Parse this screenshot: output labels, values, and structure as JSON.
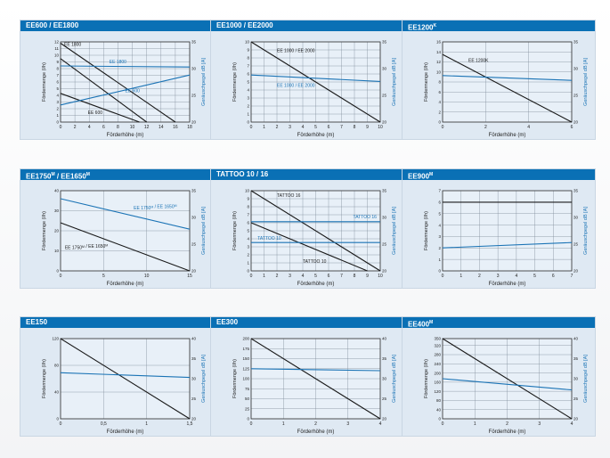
{
  "common": {
    "xlabel": "Förderhöhe (m)",
    "ylabel_left": "Fördermenge (l/h)",
    "ylabel_right": "Geräuschpegel dB [A]"
  },
  "colors": {
    "header": "#0a70b5",
    "flow": "#1a1a1a",
    "noise": "#1a73b5",
    "grid": "#7f8c99"
  },
  "chart_data": [
    {
      "type": "line",
      "title": "EE600 / EE1800",
      "x_ticks": [
        0,
        2,
        4,
        6,
        8,
        10,
        12,
        14,
        16,
        18
      ],
      "xlim": [
        0,
        18
      ],
      "y_ticks": [
        0,
        1,
        2,
        3,
        4,
        5,
        6,
        7,
        8,
        9,
        10,
        11,
        12
      ],
      "ylim": [
        0,
        12
      ],
      "y2_ticks": [
        20,
        25,
        30,
        35
      ],
      "y2lim": [
        20,
        35
      ],
      "series": [
        {
          "name": "EE 1800",
          "axis": "left",
          "x": [
            0,
            16
          ],
          "y": [
            11.8,
            0
          ]
        },
        {
          "name": "",
          "axis": "left",
          "x": [
            0,
            12
          ],
          "y": [
            9.5,
            0
          ]
        },
        {
          "name": "EE 600",
          "axis": "left",
          "x": [
            0,
            11
          ],
          "y": [
            4.3,
            0
          ]
        },
        {
          "name": "EE 1800",
          "axis": "right",
          "x": [
            0,
            18
          ],
          "y": [
            30.5,
            30.3
          ]
        },
        {
          "name": "EE 600",
          "axis": "right",
          "x": [
            0,
            18
          ],
          "y": [
            23.2,
            28.8
          ]
        }
      ],
      "labels": [
        {
          "text": "EE 1800",
          "x": 0.5,
          "y": 11.4,
          "axis": "left",
          "color": "flow"
        },
        {
          "text": "EE 1800",
          "x": 6.8,
          "y": 31.0,
          "axis": "right",
          "color": "noise"
        },
        {
          "text": "EE 600",
          "x": 9.0,
          "y": 25.6,
          "axis": "right",
          "color": "noise"
        },
        {
          "text": "EE 600",
          "x": 3.8,
          "y": 1.2,
          "axis": "left",
          "color": "flow"
        }
      ]
    },
    {
      "type": "line",
      "title": "EE1000 / EE2000",
      "x_ticks": [
        0,
        1,
        2,
        3,
        4,
        5,
        6,
        7,
        8,
        9,
        10
      ],
      "xlim": [
        0,
        10
      ],
      "y_ticks": [
        0,
        1,
        2,
        3,
        4,
        5,
        6,
        7,
        8,
        9,
        10
      ],
      "ylim": [
        0,
        10
      ],
      "y2_ticks": [
        20,
        25,
        30,
        35
      ],
      "y2lim": [
        20,
        35
      ],
      "series": [
        {
          "name": "EE 1000 / EE 2000",
          "axis": "left",
          "x": [
            0,
            10
          ],
          "y": [
            10,
            0
          ]
        },
        {
          "name": "EE 1000 / EE 2000",
          "axis": "right",
          "x": [
            0,
            10
          ],
          "y": [
            28.8,
            27.6
          ]
        }
      ],
      "labels": [
        {
          "text": "EE 1000 / EE 2000",
          "x": 2.0,
          "y": 8.7,
          "axis": "left",
          "color": "flow"
        },
        {
          "text": "EE 1000 / EE 2000",
          "x": 2.0,
          "y": 26.6,
          "axis": "right",
          "color": "noise"
        }
      ]
    },
    {
      "type": "line",
      "title": "EE1200",
      "title_sup": "K",
      "x_ticks": [
        0,
        2,
        4,
        6
      ],
      "xlim": [
        0,
        6
      ],
      "y_ticks": [
        0,
        2,
        4,
        6,
        8,
        10,
        12,
        14,
        16
      ],
      "ylim": [
        0,
        16
      ],
      "y2_ticks": [
        20,
        25,
        30,
        35
      ],
      "y2lim": [
        20,
        35
      ],
      "series": [
        {
          "name": "EE 1200K",
          "axis": "left",
          "x": [
            0,
            6
          ],
          "y": [
            13.5,
            0
          ]
        },
        {
          "name": "EE 1200K",
          "axis": "right",
          "x": [
            0,
            6
          ],
          "y": [
            28.7,
            27.8
          ]
        }
      ],
      "labels": [
        {
          "text": "EE 1200K",
          "x": 1.2,
          "y": 12.0,
          "axis": "left",
          "color": "flow"
        }
      ]
    },
    {
      "type": "line",
      "title": "EE1750",
      "title_sup": "M",
      "title_rest": " / EE1650",
      "title_sup2": "M",
      "x_ticks": [
        0,
        5,
        10,
        15
      ],
      "xlim": [
        0,
        15
      ],
      "y_ticks": [
        0,
        10,
        20,
        30,
        40
      ],
      "ylim": [
        0,
        40
      ],
      "y2_ticks": [
        20,
        25,
        30,
        35
      ],
      "y2lim": [
        20,
        35
      ],
      "series": [
        {
          "name": "EE 1750M / EE 1650M",
          "axis": "left",
          "x": [
            0,
            15
          ],
          "y": [
            24,
            0
          ]
        },
        {
          "name": "EE 1750M / EE 1650M",
          "axis": "right",
          "x": [
            0,
            15
          ],
          "y": [
            33.5,
            27.8
          ]
        }
      ],
      "labels": [
        {
          "text": "EE 1750",
          "sup": "M",
          "rest": " / EE 1650",
          "sup2": "M",
          "x": 8.5,
          "y": 31.5,
          "axis": "right",
          "color": "noise"
        },
        {
          "text": "EE 1750",
          "sup": "M",
          "rest": " / EE 1650",
          "sup2": "M",
          "x": 0.5,
          "y": 11.0,
          "axis": "left",
          "color": "flow"
        }
      ]
    },
    {
      "type": "line",
      "title": "TATTOO 10 / 16",
      "x_ticks": [
        0,
        1,
        2,
        3,
        4,
        5,
        6,
        7,
        8,
        9,
        10
      ],
      "xlim": [
        0,
        10
      ],
      "y_ticks": [
        0,
        1,
        2,
        3,
        4,
        5,
        6,
        7,
        8,
        9,
        10
      ],
      "ylim": [
        0,
        10
      ],
      "y2_ticks": [
        20,
        25,
        30,
        35
      ],
      "y2lim": [
        20,
        35
      ],
      "series": [
        {
          "name": "TATTOO 16",
          "axis": "left",
          "x": [
            0,
            10
          ],
          "y": [
            10,
            0
          ]
        },
        {
          "name": "TATTOO 10",
          "axis": "left",
          "x": [
            0,
            9
          ],
          "y": [
            6,
            0
          ]
        },
        {
          "name": "TATTOO 16",
          "axis": "right",
          "x": [
            0,
            10
          ],
          "y": [
            29.2,
            29.2
          ]
        },
        {
          "name": "TATTOO 10",
          "axis": "right",
          "x": [
            0,
            10
          ],
          "y": [
            25.3,
            25.3
          ]
        }
      ],
      "labels": [
        {
          "text": "TATTOO 16",
          "x": 2.0,
          "y": 9.2,
          "axis": "left",
          "color": "flow"
        },
        {
          "text": "TATTOO 16",
          "x": 7.9,
          "y": 29.8,
          "axis": "right",
          "color": "noise"
        },
        {
          "text": "TATTOO 10",
          "x": 0.5,
          "y": 25.8,
          "axis": "right",
          "color": "noise"
        },
        {
          "text": "TATTOO 10",
          "x": 4.0,
          "y": 1.0,
          "axis": "left",
          "color": "flow"
        }
      ]
    },
    {
      "type": "line",
      "title": "EE900",
      "title_sup": "M",
      "x_ticks": [
        0,
        1,
        2,
        3,
        4,
        5,
        6,
        7
      ],
      "xlim": [
        0,
        7
      ],
      "y_ticks": [
        0,
        1,
        2,
        3,
        4,
        5,
        6,
        7
      ],
      "ylim": [
        0,
        7
      ],
      "y2_ticks": [
        20,
        25,
        30,
        35
      ],
      "y2lim": [
        20,
        35
      ],
      "series": [
        {
          "name": "",
          "axis": "left",
          "x": [
            0,
            7
          ],
          "y": [
            6,
            6
          ]
        },
        {
          "name": "",
          "axis": "right",
          "x": [
            0,
            7
          ],
          "y": [
            24.3,
            25.3
          ]
        }
      ],
      "labels": []
    },
    {
      "type": "line",
      "title": "EE150",
      "x_ticks": [
        0,
        0.5,
        1,
        1.5
      ],
      "x_tick_labels": [
        "0",
        "0,5",
        "1",
        "1,5"
      ],
      "xlim": [
        0,
        1.5
      ],
      "y_ticks": [
        0,
        40,
        80,
        120
      ],
      "ylim": [
        0,
        120
      ],
      "y2_ticks": [
        20,
        25,
        30,
        35,
        40
      ],
      "y2lim": [
        20,
        40
      ],
      "series": [
        {
          "name": "",
          "axis": "left",
          "x": [
            0,
            1.5
          ],
          "y": [
            120,
            0
          ]
        },
        {
          "name": "",
          "axis": "right",
          "x": [
            0,
            1.5
          ],
          "y": [
            31.5,
            30.3
          ]
        }
      ],
      "labels": []
    },
    {
      "type": "line",
      "title": "EE300",
      "x_ticks": [
        0,
        1,
        2,
        3,
        4
      ],
      "xlim": [
        0,
        4
      ],
      "y_ticks": [
        0,
        25,
        50,
        75,
        100,
        125,
        150,
        175,
        200
      ],
      "ylim": [
        0,
        200
      ],
      "y2_ticks": [
        20,
        25,
        30,
        35,
        40
      ],
      "y2lim": [
        20,
        40
      ],
      "series": [
        {
          "name": "",
          "axis": "left",
          "x": [
            0,
            4
          ],
          "y": [
            200,
            0
          ]
        },
        {
          "name": "",
          "axis": "right",
          "x": [
            0,
            4
          ],
          "y": [
            32.5,
            32.0
          ]
        }
      ],
      "labels": []
    },
    {
      "type": "line",
      "title": "EE400",
      "title_sup": "M",
      "x_ticks": [
        0,
        1,
        2,
        3,
        4
      ],
      "xlim": [
        0,
        4
      ],
      "y_ticks": [
        0,
        40,
        80,
        120,
        160,
        200,
        240,
        280,
        320,
        350
      ],
      "ylim": [
        0,
        350
      ],
      "y2_ticks": [
        20,
        25,
        30,
        35,
        40
      ],
      "y2lim": [
        20,
        40
      ],
      "series": [
        {
          "name": "",
          "axis": "left",
          "x": [
            0,
            4
          ],
          "y": [
            350,
            0
          ]
        },
        {
          "name": "",
          "axis": "right",
          "x": [
            0,
            4
          ],
          "y": [
            30.0,
            27.2
          ]
        }
      ],
      "labels": []
    }
  ]
}
